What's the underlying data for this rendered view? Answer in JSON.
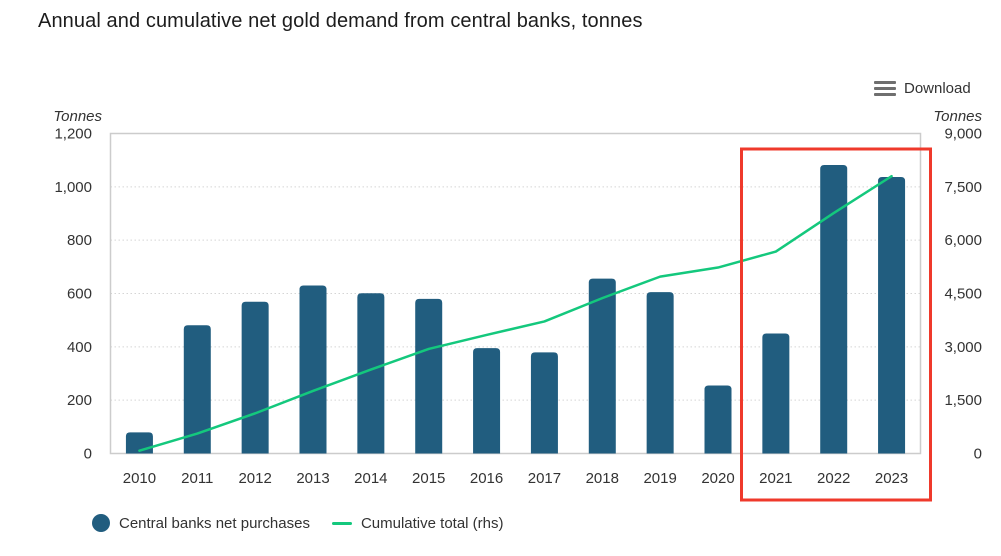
{
  "title": "Annual and cumulative net gold demand from central banks, tonnes",
  "download_label": "Download",
  "legend": [
    {
      "label": "Central banks net purchases",
      "marker": "circle",
      "color": "#215d7f"
    },
    {
      "label": "Cumulative total (rhs)",
      "marker": "line",
      "color": "#14c87d"
    }
  ],
  "chart_data": {
    "type": "bar",
    "subtype": "bar+line dual-axis combo",
    "grid": "dotted horizontal gridlines",
    "legend_position": "bottom-left",
    "categories": [
      "2010",
      "2011",
      "2012",
      "2013",
      "2014",
      "2015",
      "2016",
      "2017",
      "2018",
      "2019",
      "2020",
      "2021",
      "2022",
      "2023"
    ],
    "series": [
      {
        "name": "Central banks net purchases",
        "type": "bar",
        "axis": "left",
        "color": "#215d7f",
        "values": [
          79,
          481,
          569,
          630,
          601,
          580,
          395,
          379,
          656,
          605,
          255,
          450,
          1082,
          1037
        ]
      },
      {
        "name": "Cumulative total (rhs)",
        "type": "line",
        "axis": "right",
        "color": "#14c87d",
        "values": [
          79,
          560,
          1129,
          1759,
          2360,
          2940,
          3335,
          3714,
          4370,
          4975,
          5230,
          5680,
          6762,
          7799
        ]
      }
    ],
    "left_axis": {
      "title": "Tonnes",
      "min": 0,
      "max": 1200,
      "tick_interval": 200
    },
    "right_axis": {
      "title": "Tonnes",
      "min": 0,
      "max": 9000,
      "tick_interval": 1500
    },
    "highlight": {
      "years": [
        "2021",
        "2022",
        "2023"
      ],
      "color": "#ef392b"
    }
  }
}
